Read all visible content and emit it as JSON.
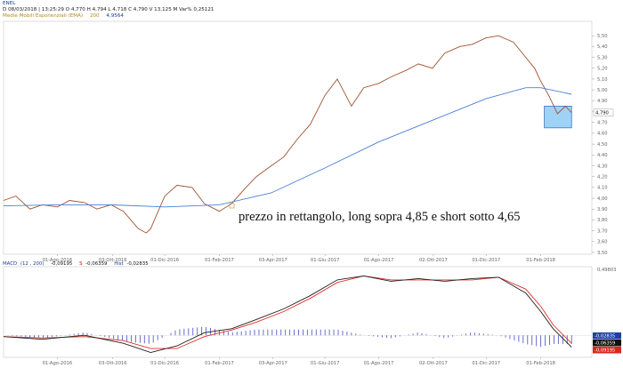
{
  "header": {
    "symbol": "ENEL",
    "quote_line": "D 08/03/2018 | 13:25:29  O 4,770  H 4,794  L 4,718  C 4,790  V 13,125 M  Var% 0,25121",
    "ema_label": "Medie Mobili Esponenziali (EMA)",
    "ema_period": "200",
    "ema_value": "4,9564"
  },
  "macd_header": {
    "label": "MACD",
    "params": "(12 , 200)",
    "macd_value": "-0,09195",
    "signal_label": "S",
    "signal_value": "-0,06359",
    "hist_label": "Hist",
    "hist_value": "-0,02835"
  },
  "annotation": "prezzo in rettangolo, long sopra 4,85 e short sotto 4,65",
  "colors": {
    "price": "#a0522d",
    "ema": "#4a7fd8",
    "box_fill": "#9fd3f5",
    "box_stroke": "#3a78c8",
    "macd": "#1e1e1e",
    "signal": "#e0302a",
    "histogram": "#5a5fc8",
    "tag_blue": "#1f3fa8",
    "tag_black": "#111111",
    "tag_red": "#d8261e"
  },
  "chart_data": [
    {
      "type": "line",
      "title": "ENEL",
      "x_ticks": [
        "01-Ago-2016",
        "03-Ott-2016",
        "01-Dic-2016",
        "01-Feb-2017",
        "03-Apr-2017",
        "01-Giu-2017",
        "01-Ago-2017",
        "02-Ott-2017",
        "01-Dic-2017",
        "01-Feb-2018"
      ],
      "y_ticks": [
        "3,50",
        "3,60",
        "3,70",
        "3,80",
        "3,90",
        "4,00",
        "4,10",
        "4,20",
        "4,30",
        "4,40",
        "4,50",
        "4,60",
        "4,70",
        "4,80",
        "4,90",
        "5,00",
        "5,10",
        "5,20",
        "5,30",
        "5,40",
        "5,50"
      ],
      "ylim": [
        3.5,
        5.6
      ],
      "last_price_tag": "4,790",
      "series": [
        {
          "name": "ENEL",
          "x": [
            "2016-06-01",
            "2016-06-15",
            "2016-07-01",
            "2016-07-15",
            "2016-08-01",
            "2016-08-15",
            "2016-09-01",
            "2016-09-15",
            "2016-10-01",
            "2016-10-15",
            "2016-11-01",
            "2016-11-10",
            "2016-11-15",
            "2016-12-01",
            "2016-12-15",
            "2017-01-01",
            "2017-01-15",
            "2017-02-01",
            "2017-02-15",
            "2017-03-01",
            "2017-03-15",
            "2017-04-01",
            "2017-04-15",
            "2017-05-01",
            "2017-05-15",
            "2017-06-01",
            "2017-06-15",
            "2017-07-01",
            "2017-07-15",
            "2017-08-01",
            "2017-08-15",
            "2017-09-01",
            "2017-09-15",
            "2017-10-01",
            "2017-10-15",
            "2017-11-01",
            "2017-11-15",
            "2017-12-01",
            "2017-12-15",
            "2018-01-01",
            "2018-01-15",
            "2018-01-25",
            "2018-02-01",
            "2018-02-10",
            "2018-02-20",
            "2018-03-01",
            "2018-03-08"
          ],
          "values": [
            3.98,
            4.02,
            3.9,
            3.94,
            3.92,
            3.98,
            3.96,
            3.9,
            3.94,
            3.88,
            3.72,
            3.68,
            3.72,
            4.02,
            4.12,
            4.1,
            3.95,
            3.88,
            3.95,
            4.08,
            4.2,
            4.3,
            4.38,
            4.55,
            4.68,
            4.95,
            5.1,
            4.85,
            5.02,
            5.06,
            5.12,
            5.18,
            5.24,
            5.2,
            5.34,
            5.4,
            5.42,
            5.48,
            5.5,
            5.44,
            5.3,
            5.2,
            5.08,
            4.95,
            4.78,
            4.85,
            4.79
          ]
        },
        {
          "name": "EMA 200",
          "x": [
            "2016-06-01",
            "2016-08-01",
            "2016-10-01",
            "2016-12-01",
            "2017-02-01",
            "2017-04-01",
            "2017-06-01",
            "2017-08-01",
            "2017-10-01",
            "2017-12-01",
            "2018-01-15",
            "2018-02-01",
            "2018-03-08"
          ],
          "values": [
            3.93,
            3.94,
            3.94,
            3.92,
            3.94,
            4.05,
            4.28,
            4.52,
            4.72,
            4.92,
            5.02,
            5.02,
            4.96
          ]
        }
      ],
      "rectangle": {
        "y_top": 4.85,
        "y_bottom": 4.65,
        "x_start": "2018-02-05",
        "x_end": "2018-03-08"
      }
    },
    {
      "type": "line",
      "title": "MACD (12 , 200)",
      "x_ticks": [
        "01-Ago-2016",
        "03-Ott-2016",
        "01-Dic-2016",
        "01-Feb-2017",
        "03-Apr-2017",
        "01-Giu-2017",
        "01-Ago-2017",
        "02-Ott-2017",
        "01-Dic-2017",
        "01-Feb-2018"
      ],
      "top_tag": "0,49803",
      "value_tags": [
        "-0,02835",
        "-0,06359",
        "-0,09195"
      ],
      "series": [
        {
          "name": "MACD",
          "x": [
            "2016-06-01",
            "2016-07-15",
            "2016-09-01",
            "2016-10-15",
            "2016-11-15",
            "2016-12-15",
            "2017-01-15",
            "2017-02-15",
            "2017-03-15",
            "2017-04-15",
            "2017-05-15",
            "2017-06-15",
            "2017-07-15",
            "2017-08-15",
            "2017-09-15",
            "2017-10-15",
            "2017-11-15",
            "2017-12-15",
            "2018-01-15",
            "2018-02-01",
            "2018-02-15",
            "2018-03-08"
          ],
          "values": [
            -0.01,
            -0.03,
            0.0,
            -0.06,
            -0.13,
            -0.08,
            0.02,
            0.05,
            0.12,
            0.2,
            0.3,
            0.42,
            0.45,
            0.41,
            0.43,
            0.41,
            0.43,
            0.44,
            0.32,
            0.18,
            0.05,
            -0.09
          ]
        },
        {
          "name": "Signal",
          "x": [
            "2016-06-01",
            "2016-07-15",
            "2016-09-01",
            "2016-10-15",
            "2016-11-15",
            "2016-12-15",
            "2017-01-15",
            "2017-02-15",
            "2017-03-15",
            "2017-04-15",
            "2017-05-15",
            "2017-06-15",
            "2017-07-15",
            "2017-08-15",
            "2017-09-15",
            "2017-10-15",
            "2017-11-15",
            "2017-12-15",
            "2018-01-15",
            "2018-02-01",
            "2018-02-15",
            "2018-03-08"
          ],
          "values": [
            -0.01,
            -0.02,
            -0.01,
            -0.04,
            -0.1,
            -0.1,
            -0.01,
            0.04,
            0.1,
            0.18,
            0.28,
            0.4,
            0.45,
            0.42,
            0.42,
            0.42,
            0.42,
            0.44,
            0.35,
            0.22,
            0.08,
            -0.06
          ]
        }
      ]
    }
  ]
}
